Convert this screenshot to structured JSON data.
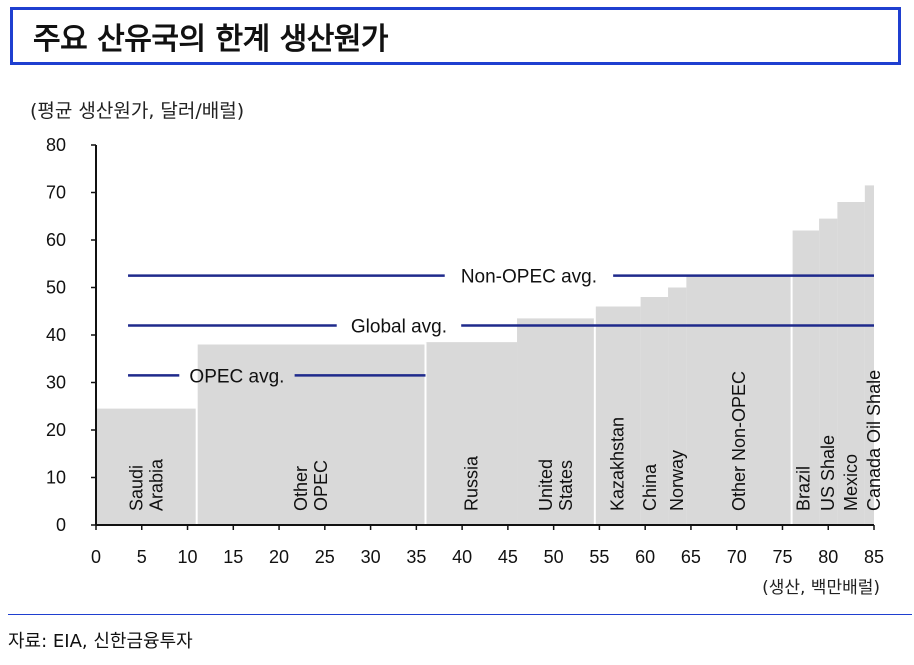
{
  "header": {
    "title": "주요 산유국의 한계 생산원가"
  },
  "chart_data": {
    "type": "bar",
    "ylabel": "(평균 생산원가, 달러/배럴)",
    "xlabel": "(생산, 백만배럴)",
    "xlim": [
      0,
      85
    ],
    "ylim": [
      0,
      80
    ],
    "x_ticks": [
      0,
      5,
      10,
      15,
      20,
      25,
      30,
      35,
      40,
      45,
      50,
      55,
      60,
      65,
      70,
      75,
      80,
      85
    ],
    "y_ticks": [
      0,
      10,
      20,
      30,
      40,
      50,
      60,
      70,
      80
    ],
    "bars": [
      {
        "x0": 0,
        "x1": 11,
        "value": 24.5
      },
      {
        "x0": 11,
        "x1": 36,
        "value": 38
      },
      {
        "x0": 36,
        "x1": 46,
        "value": 38.5
      },
      {
        "x0": 46,
        "x1": 54.5,
        "value": 43.5
      },
      {
        "x0": 54.5,
        "x1": 59.5,
        "value": 46
      },
      {
        "x0": 59.5,
        "x1": 62.5,
        "value": 48
      },
      {
        "x0": 62.5,
        "x1": 64.5,
        "value": 50
      },
      {
        "x0": 64.5,
        "x1": 76,
        "value": 52.5
      },
      {
        "x0": 76,
        "x1": 79,
        "value": 62
      },
      {
        "x0": 79,
        "x1": 81,
        "value": 64.5
      },
      {
        "x0": 81,
        "x1": 84,
        "value": 68
      },
      {
        "x0": 84,
        "x1": 86,
        "value": 71.5
      }
    ],
    "separators": [
      11,
      36,
      54.5,
      76
    ],
    "labels": [
      {
        "lines": [
          "Saudi",
          "Arabia"
        ],
        "x": 5.5
      },
      {
        "lines": [
          "Other",
          "OPEC"
        ],
        "x": 23.5
      },
      {
        "lines": [
          "Russia"
        ],
        "x": 41
      },
      {
        "lines": [
          "United",
          "States"
        ],
        "x": 50.25
      },
      {
        "lines": [
          "Kazakhstan"
        ],
        "x": 57
      },
      {
        "lines": [
          "China"
        ],
        "x": 60.5
      },
      {
        "lines": [
          "Norway"
        ],
        "x": 63.5
      },
      {
        "lines": [
          "Other Non-OPEC"
        ],
        "x": 70.25
      },
      {
        "lines": [
          "Brazil"
        ],
        "x": 77.3
      },
      {
        "lines": [
          "US Shale"
        ],
        "x": 80
      },
      {
        "lines": [
          "Mexico"
        ],
        "x": 82.5
      },
      {
        "lines": [
          "Canada Oil Shale"
        ],
        "x": 85
      }
    ],
    "averages": [
      {
        "name": "Non-OPEC avg.",
        "value": 52.5,
        "x0": 3.5,
        "x1": 85
      },
      {
        "name": "Global avg.",
        "value": 42,
        "x0": 3.5,
        "x1": 85
      },
      {
        "name": "OPEC avg.",
        "value": 31.5,
        "x0": 3.5,
        "x1": 36
      }
    ],
    "colors": {
      "bar": "#d9d9d9",
      "avg_line": "#1f2a8c",
      "separator": "#ffffff"
    }
  },
  "footer": {
    "source": "자료: EIA, 신한금융투자"
  }
}
